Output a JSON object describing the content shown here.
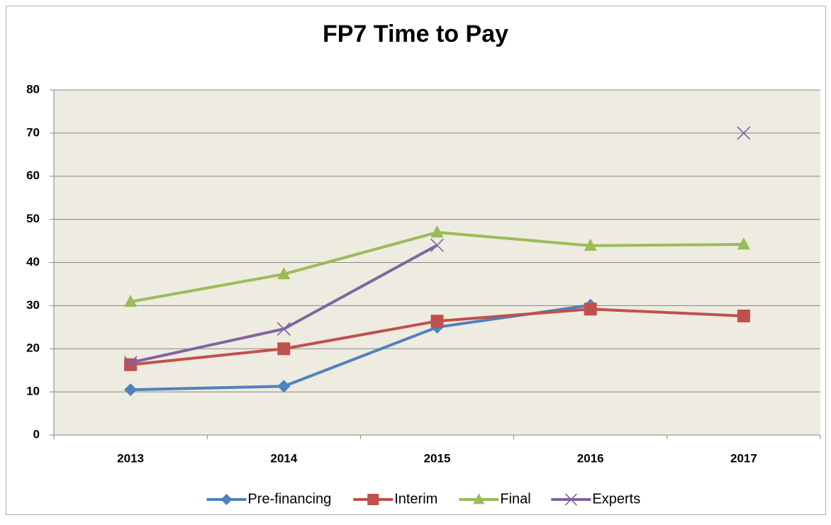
{
  "chart_data": {
    "type": "line",
    "title": "FP7 Time to Pay",
    "categories": [
      "2013",
      "2014",
      "2015",
      "2016",
      "2017"
    ],
    "series": [
      {
        "name": "Pre-financing",
        "color": "#4f81bd",
        "marker": "diamond",
        "values": [
          10.5,
          11.3,
          25.0,
          30.1,
          null
        ]
      },
      {
        "name": "Interim",
        "color": "#c0504d",
        "marker": "square",
        "values": [
          16.3,
          20.0,
          26.4,
          29.2,
          27.6
        ]
      },
      {
        "name": "Final",
        "color": "#9bbb59",
        "marker": "triangle",
        "values": [
          30.9,
          37.3,
          47.0,
          43.9,
          44.2
        ]
      },
      {
        "name": "Experts",
        "color": "#8064a2",
        "marker": "x",
        "values": [
          16.8,
          24.6,
          44.0,
          null,
          70.0
        ]
      }
    ],
    "ylim": [
      0,
      80
    ],
    "yticks": [
      0,
      10,
      20,
      30,
      40,
      50,
      60,
      70,
      80
    ],
    "grid": true,
    "legend": "bottom"
  }
}
